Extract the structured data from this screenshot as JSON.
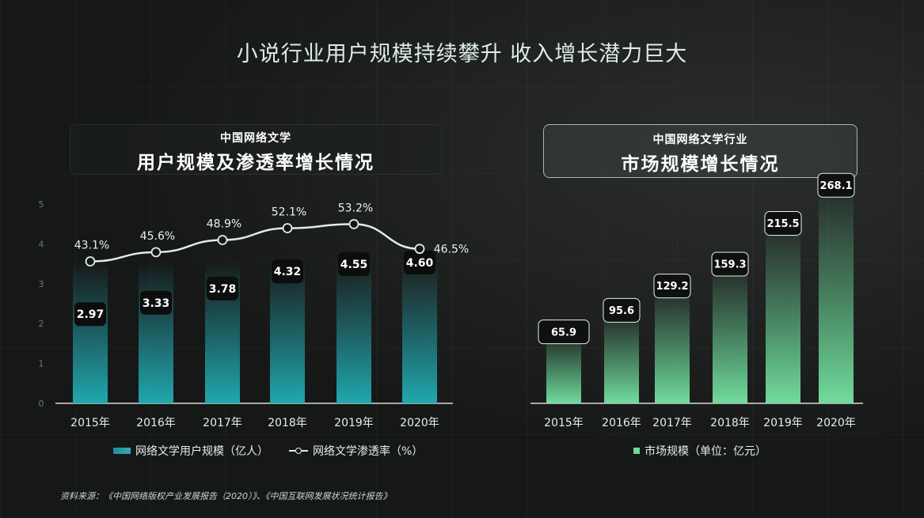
{
  "title": "小说行业用户规模持续攀升 收入增长潜力巨大",
  "left_panel": {
    "subtitle": "中国网络文学",
    "title": "用户规模及渗透率增长情况",
    "legend_bar": "网络文学用户规模（亿人）",
    "legend_line": "网络文学渗透率（%）"
  },
  "right_panel": {
    "subtitle": "中国网络文学行业",
    "title": "市场规模增长情况",
    "legend_bar": "市场规模（单位：亿元）"
  },
  "source": "资料来源：《中国网络版权产业发展报告（2020）》、《中国互联网发展状况统计报告》",
  "chart_data": [
    {
      "type": "bar",
      "categories": [
        "2015年",
        "2016年",
        "2017年",
        "2018年",
        "2019年",
        "2020年"
      ],
      "series": [
        {
          "name": "网络文学用户规模（亿人）",
          "values": [
            2.97,
            3.33,
            3.78,
            4.32,
            4.55,
            4.6
          ],
          "labels": [
            "2.97",
            "3.33",
            "3.78",
            "4.32",
            "4.55",
            "4.60"
          ]
        },
        {
          "name": "网络文学渗透率（%）",
          "type": "line",
          "values": [
            43.1,
            45.6,
            48.9,
            52.1,
            53.2,
            46.5
          ],
          "labels": [
            "43.1%",
            "45.6%",
            "48.9%",
            "52.1%",
            "53.2%",
            "46.5%"
          ]
        }
      ],
      "y_ticks": [
        "0",
        "1",
        "2",
        "3",
        "4",
        "5"
      ],
      "ylim": [
        0,
        5
      ],
      "colors": {
        "bar": "#23a3ac",
        "line": "#dfeee5"
      }
    },
    {
      "type": "bar",
      "categories": [
        "2015年",
        "2016年",
        "2017年",
        "2018年",
        "2019年",
        "2020年"
      ],
      "series": [
        {
          "name": "市场规模（单位：亿元）",
          "values": [
            65.9,
            95.6,
            129.2,
            159.3,
            215.5,
            268.1
          ],
          "labels": [
            "65.9",
            "95.6",
            "129.2",
            "159.3",
            "215.5",
            "268.1"
          ]
        }
      ],
      "colors": {
        "bar": "#6cd99a"
      }
    }
  ]
}
